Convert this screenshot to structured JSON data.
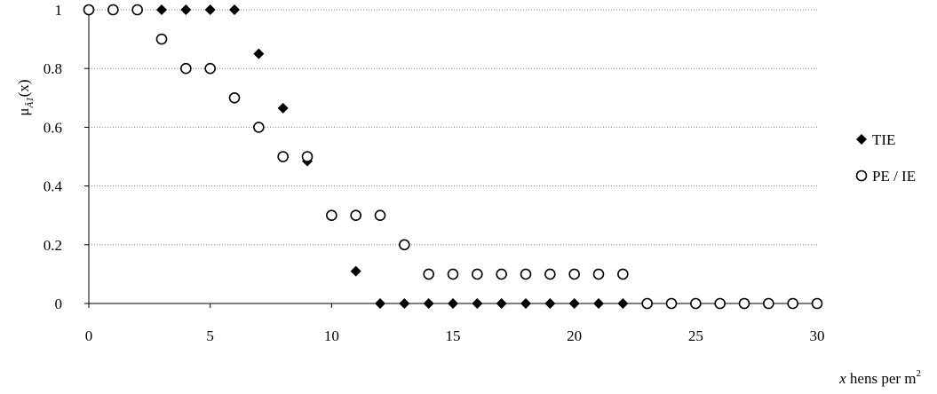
{
  "chart_data": {
    "type": "scatter",
    "x_ticks": [
      "0",
      "5",
      "10",
      "15",
      "20",
      "25",
      "30"
    ],
    "y_ticks": [
      "0",
      "0.2",
      "0.4",
      "0.6",
      "0.8",
      "1"
    ],
    "xlim": [
      0,
      30
    ],
    "ylim": [
      0,
      1
    ],
    "grid": "horizontal dotted",
    "legend_position": "right",
    "xlabel": {
      "italic": "x",
      "rest": " hens per m",
      "sup": "2"
    },
    "ylabel": {
      "mu": "μ",
      "sub": "Ã1",
      "rest": "(x)"
    },
    "series": [
      {
        "name": "TIE",
        "marker": "filled-diamond",
        "color": "#000000",
        "points": [
          [
            3,
            1
          ],
          [
            4,
            1
          ],
          [
            5,
            1
          ],
          [
            6,
            1
          ],
          [
            7,
            0.85
          ],
          [
            8,
            0.665
          ],
          [
            9,
            0.485
          ],
          [
            11,
            0.11
          ],
          [
            12,
            0
          ],
          [
            13,
            0
          ],
          [
            14,
            0
          ],
          [
            15,
            0
          ],
          [
            16,
            0
          ],
          [
            17,
            0
          ],
          [
            18,
            0
          ],
          [
            19,
            0
          ],
          [
            20,
            0
          ],
          [
            21,
            0
          ],
          [
            22,
            0
          ]
        ]
      },
      {
        "name": "PE / IE",
        "marker": "open-circle",
        "color": "#000000",
        "points": [
          [
            0,
            1
          ],
          [
            1,
            1
          ],
          [
            2,
            1
          ],
          [
            3,
            0.9
          ],
          [
            4,
            0.8
          ],
          [
            5,
            0.8
          ],
          [
            6,
            0.7
          ],
          [
            7,
            0.6
          ],
          [
            8,
            0.5
          ],
          [
            9,
            0.5
          ],
          [
            10,
            0.3
          ],
          [
            11,
            0.3
          ],
          [
            12,
            0.3
          ],
          [
            13,
            0.2
          ],
          [
            14,
            0.1
          ],
          [
            15,
            0.1
          ],
          [
            16,
            0.1
          ],
          [
            17,
            0.1
          ],
          [
            18,
            0.1
          ],
          [
            19,
            0.1
          ],
          [
            20,
            0.1
          ],
          [
            21,
            0.1
          ],
          [
            22,
            0.1
          ],
          [
            23,
            0
          ],
          [
            24,
            0
          ],
          [
            25,
            0
          ],
          [
            26,
            0
          ],
          [
            27,
            0
          ],
          [
            28,
            0
          ],
          [
            29,
            0
          ],
          [
            30,
            0
          ]
        ]
      }
    ]
  }
}
